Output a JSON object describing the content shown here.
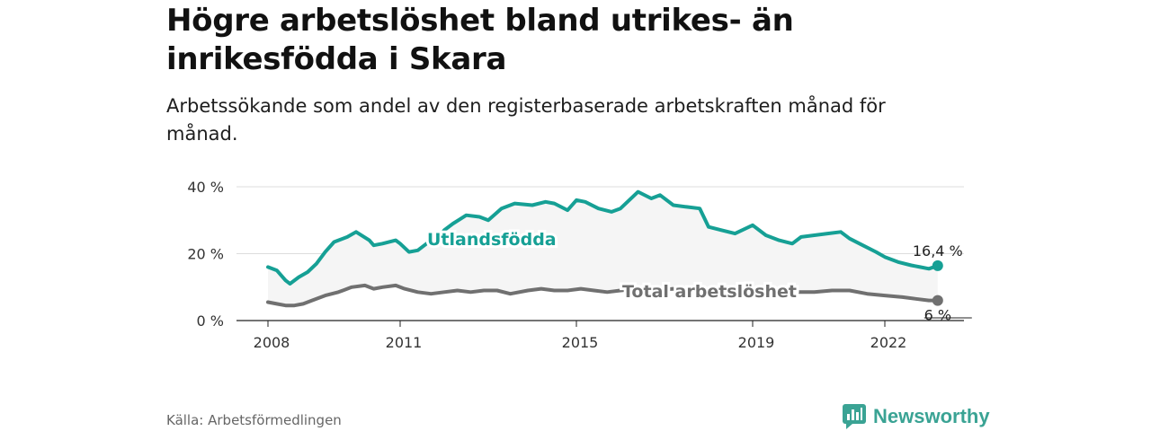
{
  "header": {
    "title": "Högre arbetslöshet bland utrikes- än inrikesfödda i Skara",
    "subtitle": "Arbetssökande som andel av den registerbaserade arbetskraften månad för månad."
  },
  "footer": {
    "source": "Källa: Arbetsförmedlingen",
    "brand": "Newsworthy",
    "brand_color": "#3aa394"
  },
  "chart_data": {
    "type": "line",
    "title": "Högre arbetslöshet bland utrikes- än inrikesfödda i Skara",
    "subtitle": "Arbetssökande som andel av den registerbaserade arbetskraften månad för månad.",
    "xlabel": "",
    "ylabel": "",
    "xlim": [
      2008.0,
      2023.5
    ],
    "ylim": [
      0,
      40
    ],
    "yticks": [
      0,
      20,
      40
    ],
    "ytick_labels": [
      "0 %",
      "20 %",
      "40 %"
    ],
    "xticks": [
      2008,
      2011,
      2015,
      2019,
      2022
    ],
    "xtick_labels": [
      "2008",
      "2011",
      "2015",
      "2019",
      "2022"
    ],
    "grid": "horizontal",
    "legend": "inline labels",
    "series": [
      {
        "name": "Utlandsfödda",
        "color": "#16a095",
        "end_label": "16,4 %",
        "x": [
          2008.0,
          2008.2,
          2008.4,
          2008.5,
          2008.7,
          2008.9,
          2009.1,
          2009.3,
          2009.5,
          2009.6,
          2009.8,
          2010.0,
          2010.3,
          2010.4,
          2010.6,
          2010.9,
          2011.0,
          2011.2,
          2011.4,
          2011.6,
          2011.9,
          2012.0,
          2012.2,
          2012.5,
          2012.8,
          2013.0,
          2013.3,
          2013.6,
          2014.0,
          2014.3,
          2014.5,
          2014.8,
          2015.0,
          2015.2,
          2015.5,
          2015.8,
          2016.0,
          2016.4,
          2016.7,
          2016.9,
          2017.2,
          2017.5,
          2017.8,
          2018.0,
          2018.3,
          2018.6,
          2019.0,
          2019.3,
          2019.6,
          2019.9,
          2020.1,
          2020.4,
          2020.7,
          2021.0,
          2021.2,
          2021.5,
          2021.8,
          2022.0,
          2022.3,
          2022.6,
          2022.8,
          2023.0,
          2023.2
        ],
        "y": [
          16.0,
          15.0,
          12.0,
          11.0,
          13.0,
          14.5,
          17.0,
          20.5,
          23.5,
          24.0,
          25.0,
          26.5,
          24.0,
          22.5,
          23.0,
          24.0,
          23.0,
          20.5,
          21.0,
          23.0,
          25.5,
          27.0,
          29.0,
          31.5,
          31.0,
          30.0,
          33.5,
          35.0,
          34.5,
          35.5,
          35.0,
          33.0,
          36.0,
          35.5,
          33.5,
          32.5,
          33.5,
          38.5,
          36.5,
          37.5,
          34.5,
          34.0,
          33.5,
          28.0,
          27.0,
          26.0,
          28.5,
          25.5,
          24.0,
          23.0,
          25.0,
          25.5,
          26.0,
          26.5,
          24.5,
          22.5,
          20.5,
          19.0,
          17.5,
          16.5,
          16.0,
          15.5,
          16.4
        ]
      },
      {
        "name": "Total arbetslöshet",
        "color": "#707070",
        "end_label": "6 %",
        "x": [
          2008.0,
          2008.2,
          2008.4,
          2008.6,
          2008.8,
          2009.0,
          2009.3,
          2009.6,
          2009.9,
          2010.2,
          2010.4,
          2010.6,
          2010.9,
          2011.1,
          2011.4,
          2011.7,
          2012.0,
          2012.3,
          2012.6,
          2012.9,
          2013.2,
          2013.5,
          2013.9,
          2014.2,
          2014.5,
          2014.8,
          2015.1,
          2015.4,
          2015.7,
          2016.0,
          2016.4,
          2016.8,
          2017.2,
          2017.6,
          2018.0,
          2018.4,
          2018.8,
          2019.2,
          2019.6,
          2020.0,
          2020.4,
          2020.8,
          2021.2,
          2021.6,
          2022.0,
          2022.4,
          2022.7,
          2023.0,
          2023.2
        ],
        "y": [
          5.5,
          5.0,
          4.5,
          4.5,
          5.0,
          6.0,
          7.5,
          8.5,
          10.0,
          10.5,
          9.5,
          10.0,
          10.5,
          9.5,
          8.5,
          8.0,
          8.5,
          9.0,
          8.5,
          9.0,
          9.0,
          8.0,
          9.0,
          9.5,
          9.0,
          9.0,
          9.5,
          9.0,
          8.5,
          9.0,
          9.5,
          9.0,
          9.5,
          9.0,
          8.5,
          8.5,
          8.5,
          8.5,
          8.5,
          8.5,
          8.5,
          9.0,
          9.0,
          8.0,
          7.5,
          7.0,
          6.5,
          6.0,
          6.0
        ]
      }
    ]
  }
}
